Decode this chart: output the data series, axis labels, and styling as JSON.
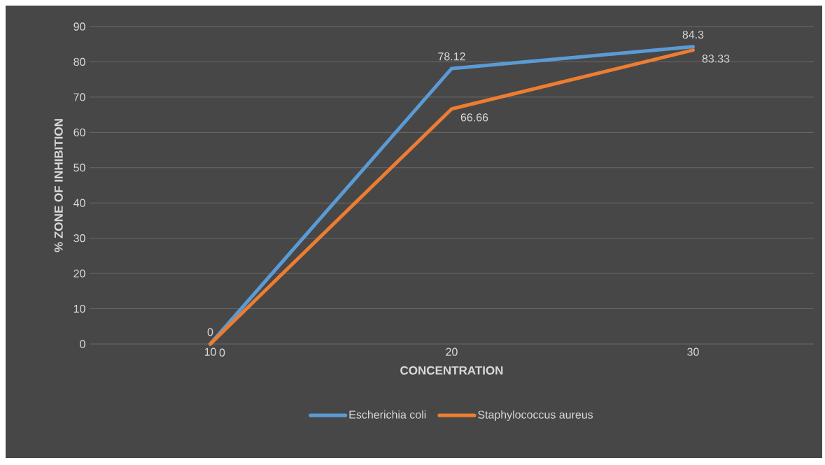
{
  "chart_data": {
    "type": "line",
    "xlabel": "CONCENTRATION",
    "ylabel": "% ZONE OF INHIBITION",
    "categories": [
      "10",
      "20",
      "30"
    ],
    "series": [
      {
        "name": "Escherichia coli",
        "color": "#5b9bd5",
        "values": [
          0,
          78.12,
          84.3
        ]
      },
      {
        "name": "Staphylococcus aureus",
        "color": "#ed7d31",
        "values": [
          0,
          66.66,
          83.33
        ]
      }
    ],
    "ylim": [
      0,
      90
    ],
    "yticks": [
      0,
      10,
      20,
      30,
      40,
      50,
      60,
      70,
      80,
      90
    ],
    "grid": "y",
    "legend": "bottom",
    "data_labels": true,
    "marker": "none",
    "line_style": "solid"
  }
}
